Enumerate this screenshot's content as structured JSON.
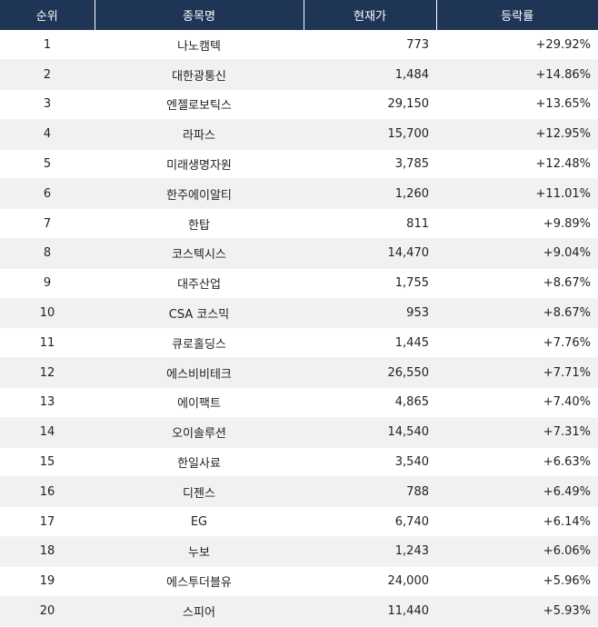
{
  "colors": {
    "header_bg": "#1f3556",
    "header_text": "#ffffff",
    "stripe": "#f1f1f1"
  },
  "headers": {
    "rank": "순위",
    "name": "종목명",
    "price": "현재가",
    "change": "등락률"
  },
  "rows": [
    {
      "rank": "1",
      "name": "나노캠텍",
      "price": "773",
      "change": "+29.92%"
    },
    {
      "rank": "2",
      "name": "대한광통신",
      "price": "1,484",
      "change": "+14.86%"
    },
    {
      "rank": "3",
      "name": "엔젤로보틱스",
      "price": "29,150",
      "change": "+13.65%"
    },
    {
      "rank": "4",
      "name": "라파스",
      "price": "15,700",
      "change": "+12.95%"
    },
    {
      "rank": "5",
      "name": "미래생명자원",
      "price": "3,785",
      "change": "+12.48%"
    },
    {
      "rank": "6",
      "name": "한주에이알티",
      "price": "1,260",
      "change": "+11.01%"
    },
    {
      "rank": "7",
      "name": "한탑",
      "price": "811",
      "change": "+9.89%"
    },
    {
      "rank": "8",
      "name": "코스텍시스",
      "price": "14,470",
      "change": "+9.04%"
    },
    {
      "rank": "9",
      "name": "대주산업",
      "price": "1,755",
      "change": "+8.67%"
    },
    {
      "rank": "10",
      "name": "CSA 코스믹",
      "price": "953",
      "change": "+8.67%"
    },
    {
      "rank": "11",
      "name": "큐로홀딩스",
      "price": "1,445",
      "change": "+7.76%"
    },
    {
      "rank": "12",
      "name": "에스비비테크",
      "price": "26,550",
      "change": "+7.71%"
    },
    {
      "rank": "13",
      "name": "에이팩트",
      "price": "4,865",
      "change": "+7.40%"
    },
    {
      "rank": "14",
      "name": "오이솔루션",
      "price": "14,540",
      "change": "+7.31%"
    },
    {
      "rank": "15",
      "name": "한일사료",
      "price": "3,540",
      "change": "+6.63%"
    },
    {
      "rank": "16",
      "name": "디젠스",
      "price": "788",
      "change": "+6.49%"
    },
    {
      "rank": "17",
      "name": "EG",
      "price": "6,740",
      "change": "+6.14%"
    },
    {
      "rank": "18",
      "name": "누보",
      "price": "1,243",
      "change": "+6.06%"
    },
    {
      "rank": "19",
      "name": "에스투더블유",
      "price": "24,000",
      "change": "+5.96%"
    },
    {
      "rank": "20",
      "name": "스피어",
      "price": "11,440",
      "change": "+5.93%"
    }
  ]
}
